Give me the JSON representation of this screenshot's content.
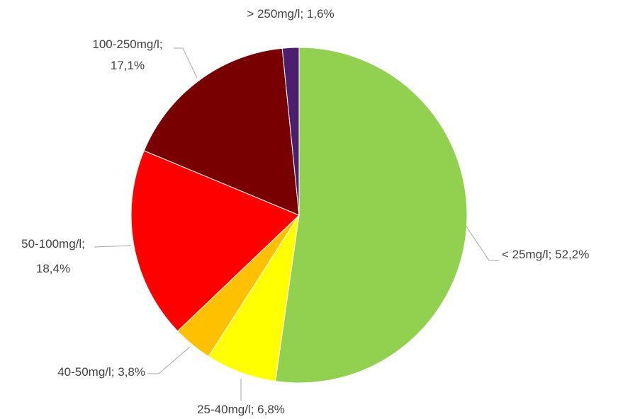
{
  "chart_data": {
    "type": "pie",
    "values": [
      52.2,
      6.8,
      3.8,
      18.4,
      17.1,
      1.6
    ],
    "value_labels": [
      "< 25mg/l; 52,2%",
      "25-40mg/l; 6,8%",
      "40-50mg/l; 3,8%",
      "50-100mg/l; 18,4%",
      "100-250mg/l; 17,1%",
      "> 250mg/l; 1,6%"
    ],
    "colors": [
      "#92d050",
      "#ffff00",
      "#ffc000",
      "#ff0000",
      "#780000",
      "#4b1e6e"
    ]
  }
}
